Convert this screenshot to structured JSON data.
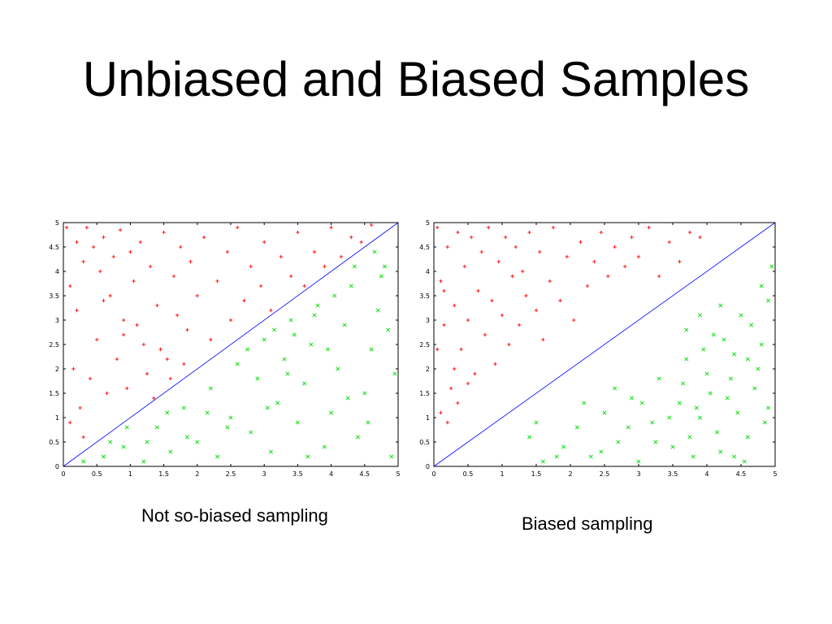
{
  "slide": {
    "title": "Unbiased and Biased Samples"
  },
  "captions": {
    "left": "Not so-biased sampling",
    "right": "Biased sampling"
  },
  "colors": {
    "positive": "#ff0000",
    "negative": "#00dd00",
    "boundary": "#0000ff",
    "frame": "#000000"
  },
  "chart_data": [
    {
      "type": "scatter",
      "caption": "Not so-biased sampling",
      "xlim": [
        0,
        5
      ],
      "ylim": [
        0,
        5
      ],
      "x_ticks": [
        "0",
        "0.5",
        "1",
        "1.5",
        "2",
        "2.5",
        "3",
        "3.5",
        "4",
        "4.5",
        "5"
      ],
      "y_ticks": [
        "0",
        "0.5",
        "1",
        "1.5",
        "2",
        "2.5",
        "3",
        "3.5",
        "4",
        "4.5",
        "5"
      ],
      "boundary_line": {
        "from": [
          0,
          0
        ],
        "to": [
          5,
          5
        ]
      },
      "series": [
        {
          "marker": "+",
          "color": "#ff0000",
          "region": "y > x",
          "points": [
            [
              0.05,
              4.9
            ],
            [
              0.1,
              3.7
            ],
            [
              0.2,
              4.6
            ],
            [
              0.3,
              4.2
            ],
            [
              0.35,
              4.9
            ],
            [
              0.45,
              4.5
            ],
            [
              0.55,
              4.0
            ],
            [
              0.6,
              4.7
            ],
            [
              0.7,
              3.5
            ],
            [
              0.75,
              4.3
            ],
            [
              0.85,
              4.85
            ],
            [
              0.9,
              3.0
            ],
            [
              1.0,
              4.4
            ],
            [
              1.05,
              3.8
            ],
            [
              1.15,
              4.6
            ],
            [
              1.2,
              2.5
            ],
            [
              1.3,
              4.1
            ],
            [
              1.4,
              3.3
            ],
            [
              1.5,
              4.8
            ],
            [
              1.55,
              2.2
            ],
            [
              1.65,
              3.9
            ],
            [
              1.75,
              4.5
            ],
            [
              1.85,
              2.8
            ],
            [
              1.9,
              4.2
            ],
            [
              2.0,
              3.5
            ],
            [
              2.1,
              4.7
            ],
            [
              2.2,
              2.6
            ],
            [
              2.3,
              3.8
            ],
            [
              2.45,
              4.4
            ],
            [
              2.5,
              3.0
            ],
            [
              2.6,
              4.9
            ],
            [
              2.7,
              3.4
            ],
            [
              2.8,
              4.1
            ],
            [
              2.95,
              3.7
            ],
            [
              3.0,
              4.6
            ],
            [
              3.1,
              3.2
            ],
            [
              3.25,
              4.3
            ],
            [
              3.4,
              3.9
            ],
            [
              3.5,
              4.8
            ],
            [
              3.6,
              3.7
            ],
            [
              3.75,
              4.4
            ],
            [
              3.9,
              4.1
            ],
            [
              4.0,
              4.9
            ],
            [
              4.15,
              4.3
            ],
            [
              4.3,
              4.7
            ],
            [
              4.45,
              4.6
            ],
            [
              4.6,
              4.95
            ],
            [
              0.15,
              2.0
            ],
            [
              0.25,
              1.2
            ],
            [
              0.4,
              1.8
            ],
            [
              0.5,
              2.6
            ],
            [
              0.65,
              1.5
            ],
            [
              0.8,
              2.2
            ],
            [
              0.95,
              1.6
            ],
            [
              1.1,
              2.9
            ],
            [
              1.25,
              1.9
            ],
            [
              1.35,
              1.4
            ],
            [
              1.45,
              2.4
            ],
            [
              1.6,
              1.8
            ],
            [
              1.7,
              3.1
            ],
            [
              1.8,
              2.1
            ],
            [
              0.1,
              0.9
            ],
            [
              0.3,
              0.6
            ],
            [
              0.2,
              3.2
            ],
            [
              0.6,
              3.4
            ],
            [
              0.9,
              2.7
            ]
          ]
        },
        {
          "marker": "x",
          "color": "#00dd00",
          "region": "y < x",
          "points": [
            [
              0.3,
              0.1
            ],
            [
              0.6,
              0.2
            ],
            [
              0.9,
              0.4
            ],
            [
              1.2,
              0.1
            ],
            [
              1.4,
              0.8
            ],
            [
              1.6,
              0.3
            ],
            [
              1.8,
              1.2
            ],
            [
              2.0,
              0.5
            ],
            [
              2.2,
              1.6
            ],
            [
              2.3,
              0.2
            ],
            [
              2.5,
              1.0
            ],
            [
              2.6,
              2.1
            ],
            [
              2.8,
              0.7
            ],
            [
              2.9,
              1.8
            ],
            [
              3.0,
              2.6
            ],
            [
              3.1,
              0.3
            ],
            [
              3.2,
              1.3
            ],
            [
              3.3,
              2.2
            ],
            [
              3.4,
              3.0
            ],
            [
              3.5,
              0.9
            ],
            [
              3.6,
              1.7
            ],
            [
              3.7,
              2.5
            ],
            [
              3.8,
              3.3
            ],
            [
              3.9,
              0.4
            ],
            [
              4.0,
              1.1
            ],
            [
              4.1,
              2.0
            ],
            [
              4.2,
              2.9
            ],
            [
              4.3,
              3.7
            ],
            [
              4.4,
              0.6
            ],
            [
              4.5,
              1.5
            ],
            [
              4.6,
              2.4
            ],
            [
              4.7,
              3.2
            ],
            [
              4.8,
              4.1
            ],
            [
              4.9,
              0.2
            ],
            [
              4.95,
              1.9
            ],
            [
              4.85,
              2.8
            ],
            [
              4.75,
              3.9
            ],
            [
              4.65,
              4.4
            ],
            [
              4.55,
              0.9
            ],
            [
              4.25,
              1.4
            ],
            [
              3.95,
              2.4
            ],
            [
              3.65,
              0.2
            ],
            [
              3.35,
              1.9
            ],
            [
              3.05,
              1.2
            ],
            [
              2.75,
              2.4
            ],
            [
              2.45,
              0.8
            ],
            [
              2.15,
              1.1
            ],
            [
              1.85,
              0.6
            ],
            [
              1.55,
              1.1
            ],
            [
              1.25,
              0.5
            ],
            [
              0.95,
              0.8
            ],
            [
              0.7,
              0.5
            ],
            [
              4.35,
              4.1
            ],
            [
              4.05,
              3.5
            ],
            [
              3.75,
              3.1
            ],
            [
              3.45,
              2.7
            ],
            [
              3.15,
              2.8
            ]
          ]
        }
      ]
    },
    {
      "type": "scatter",
      "caption": "Biased sampling",
      "xlim": [
        0,
        5
      ],
      "ylim": [
        0,
        5
      ],
      "x_ticks": [
        "0",
        "0.5",
        "1",
        "1.5",
        "2",
        "2.5",
        "3",
        "3.5",
        "4",
        "4.5",
        "5"
      ],
      "y_ticks": [
        "0",
        "0.5",
        "1",
        "1.5",
        "2",
        "2.5",
        "3",
        "3.5",
        "4",
        "4.5",
        "5"
      ],
      "boundary_line": {
        "from": [
          0,
          0
        ],
        "to": [
          5,
          5
        ]
      },
      "series": [
        {
          "marker": "+",
          "color": "#ff0000",
          "region": "upper-left",
          "points": [
            [
              0.05,
              4.9
            ],
            [
              0.1,
              3.8
            ],
            [
              0.15,
              2.9
            ],
            [
              0.2,
              4.5
            ],
            [
              0.25,
              1.6
            ],
            [
              0.3,
              3.3
            ],
            [
              0.35,
              4.8
            ],
            [
              0.4,
              2.4
            ],
            [
              0.45,
              4.1
            ],
            [
              0.5,
              3.0
            ],
            [
              0.55,
              4.7
            ],
            [
              0.6,
              1.9
            ],
            [
              0.65,
              3.6
            ],
            [
              0.7,
              4.4
            ],
            [
              0.75,
              2.7
            ],
            [
              0.8,
              4.9
            ],
            [
              0.85,
              3.4
            ],
            [
              0.9,
              2.1
            ],
            [
              0.95,
              4.2
            ],
            [
              1.0,
              3.1
            ],
            [
              1.05,
              4.7
            ],
            [
              1.1,
              2.5
            ],
            [
              1.15,
              3.9
            ],
            [
              1.2,
              4.5
            ],
            [
              1.25,
              2.9
            ],
            [
              1.3,
              4.0
            ],
            [
              1.35,
              3.5
            ],
            [
              1.4,
              4.8
            ],
            [
              1.5,
              3.2
            ],
            [
              1.55,
              4.4
            ],
            [
              1.6,
              2.6
            ],
            [
              1.7,
              3.8
            ],
            [
              1.75,
              4.9
            ],
            [
              1.85,
              3.4
            ],
            [
              1.95,
              4.3
            ],
            [
              2.05,
              3.0
            ],
            [
              2.15,
              4.6
            ],
            [
              2.25,
              3.7
            ],
            [
              2.35,
              4.2
            ],
            [
              2.45,
              4.8
            ],
            [
              2.55,
              3.9
            ],
            [
              2.65,
              4.5
            ],
            [
              2.8,
              4.1
            ],
            [
              2.9,
              4.7
            ],
            [
              3.0,
              4.3
            ],
            [
              3.15,
              4.9
            ],
            [
              3.3,
              3.9
            ],
            [
              3.45,
              4.6
            ],
            [
              3.6,
              4.2
            ],
            [
              3.75,
              4.8
            ],
            [
              3.9,
              4.7
            ],
            [
              0.1,
              1.1
            ],
            [
              0.2,
              0.9
            ],
            [
              0.35,
              1.3
            ],
            [
              0.5,
              1.7
            ],
            [
              0.05,
              2.4
            ],
            [
              0.15,
              3.6
            ],
            [
              0.3,
              2.0
            ]
          ]
        },
        {
          "marker": "x",
          "color": "#00dd00",
          "region": "lower-right",
          "points": [
            [
              1.4,
              0.6
            ],
            [
              1.6,
              0.1
            ],
            [
              1.9,
              0.4
            ],
            [
              2.1,
              0.8
            ],
            [
              2.3,
              0.2
            ],
            [
              2.5,
              1.1
            ],
            [
              2.7,
              0.5
            ],
            [
              2.9,
              1.4
            ],
            [
              3.0,
              0.1
            ],
            [
              3.2,
              0.9
            ],
            [
              3.3,
              1.8
            ],
            [
              3.5,
              0.4
            ],
            [
              3.6,
              1.3
            ],
            [
              3.7,
              2.2
            ],
            [
              3.8,
              0.2
            ],
            [
              3.9,
              1.0
            ],
            [
              4.0,
              1.9
            ],
            [
              4.1,
              2.7
            ],
            [
              4.2,
              0.3
            ],
            [
              4.3,
              1.4
            ],
            [
              4.4,
              2.3
            ],
            [
              4.5,
              3.1
            ],
            [
              4.6,
              0.6
            ],
            [
              4.7,
              1.6
            ],
            [
              4.8,
              2.5
            ],
            [
              4.9,
              3.4
            ],
            [
              4.95,
              4.1
            ],
            [
              4.85,
              0.9
            ],
            [
              4.75,
              2.0
            ],
            [
              4.65,
              2.9
            ],
            [
              4.55,
              0.1
            ],
            [
              4.45,
              1.1
            ],
            [
              4.35,
              1.8
            ],
            [
              4.25,
              2.6
            ],
            [
              4.15,
              0.7
            ],
            [
              4.05,
              1.5
            ],
            [
              3.95,
              2.4
            ],
            [
              3.85,
              1.2
            ],
            [
              3.75,
              0.6
            ],
            [
              3.65,
              1.7
            ],
            [
              3.45,
              1.0
            ],
            [
              3.25,
              0.5
            ],
            [
              3.05,
              1.3
            ],
            [
              2.85,
              0.8
            ],
            [
              2.65,
              1.6
            ],
            [
              2.45,
              0.3
            ],
            [
              2.2,
              1.3
            ],
            [
              1.8,
              0.2
            ],
            [
              1.5,
              0.9
            ],
            [
              4.9,
              1.2
            ],
            [
              4.8,
              3.7
            ],
            [
              4.6,
              2.2
            ],
            [
              4.4,
              0.2
            ],
            [
              4.2,
              3.3
            ],
            [
              3.9,
              3.1
            ],
            [
              3.7,
              2.8
            ]
          ]
        }
      ]
    }
  ]
}
